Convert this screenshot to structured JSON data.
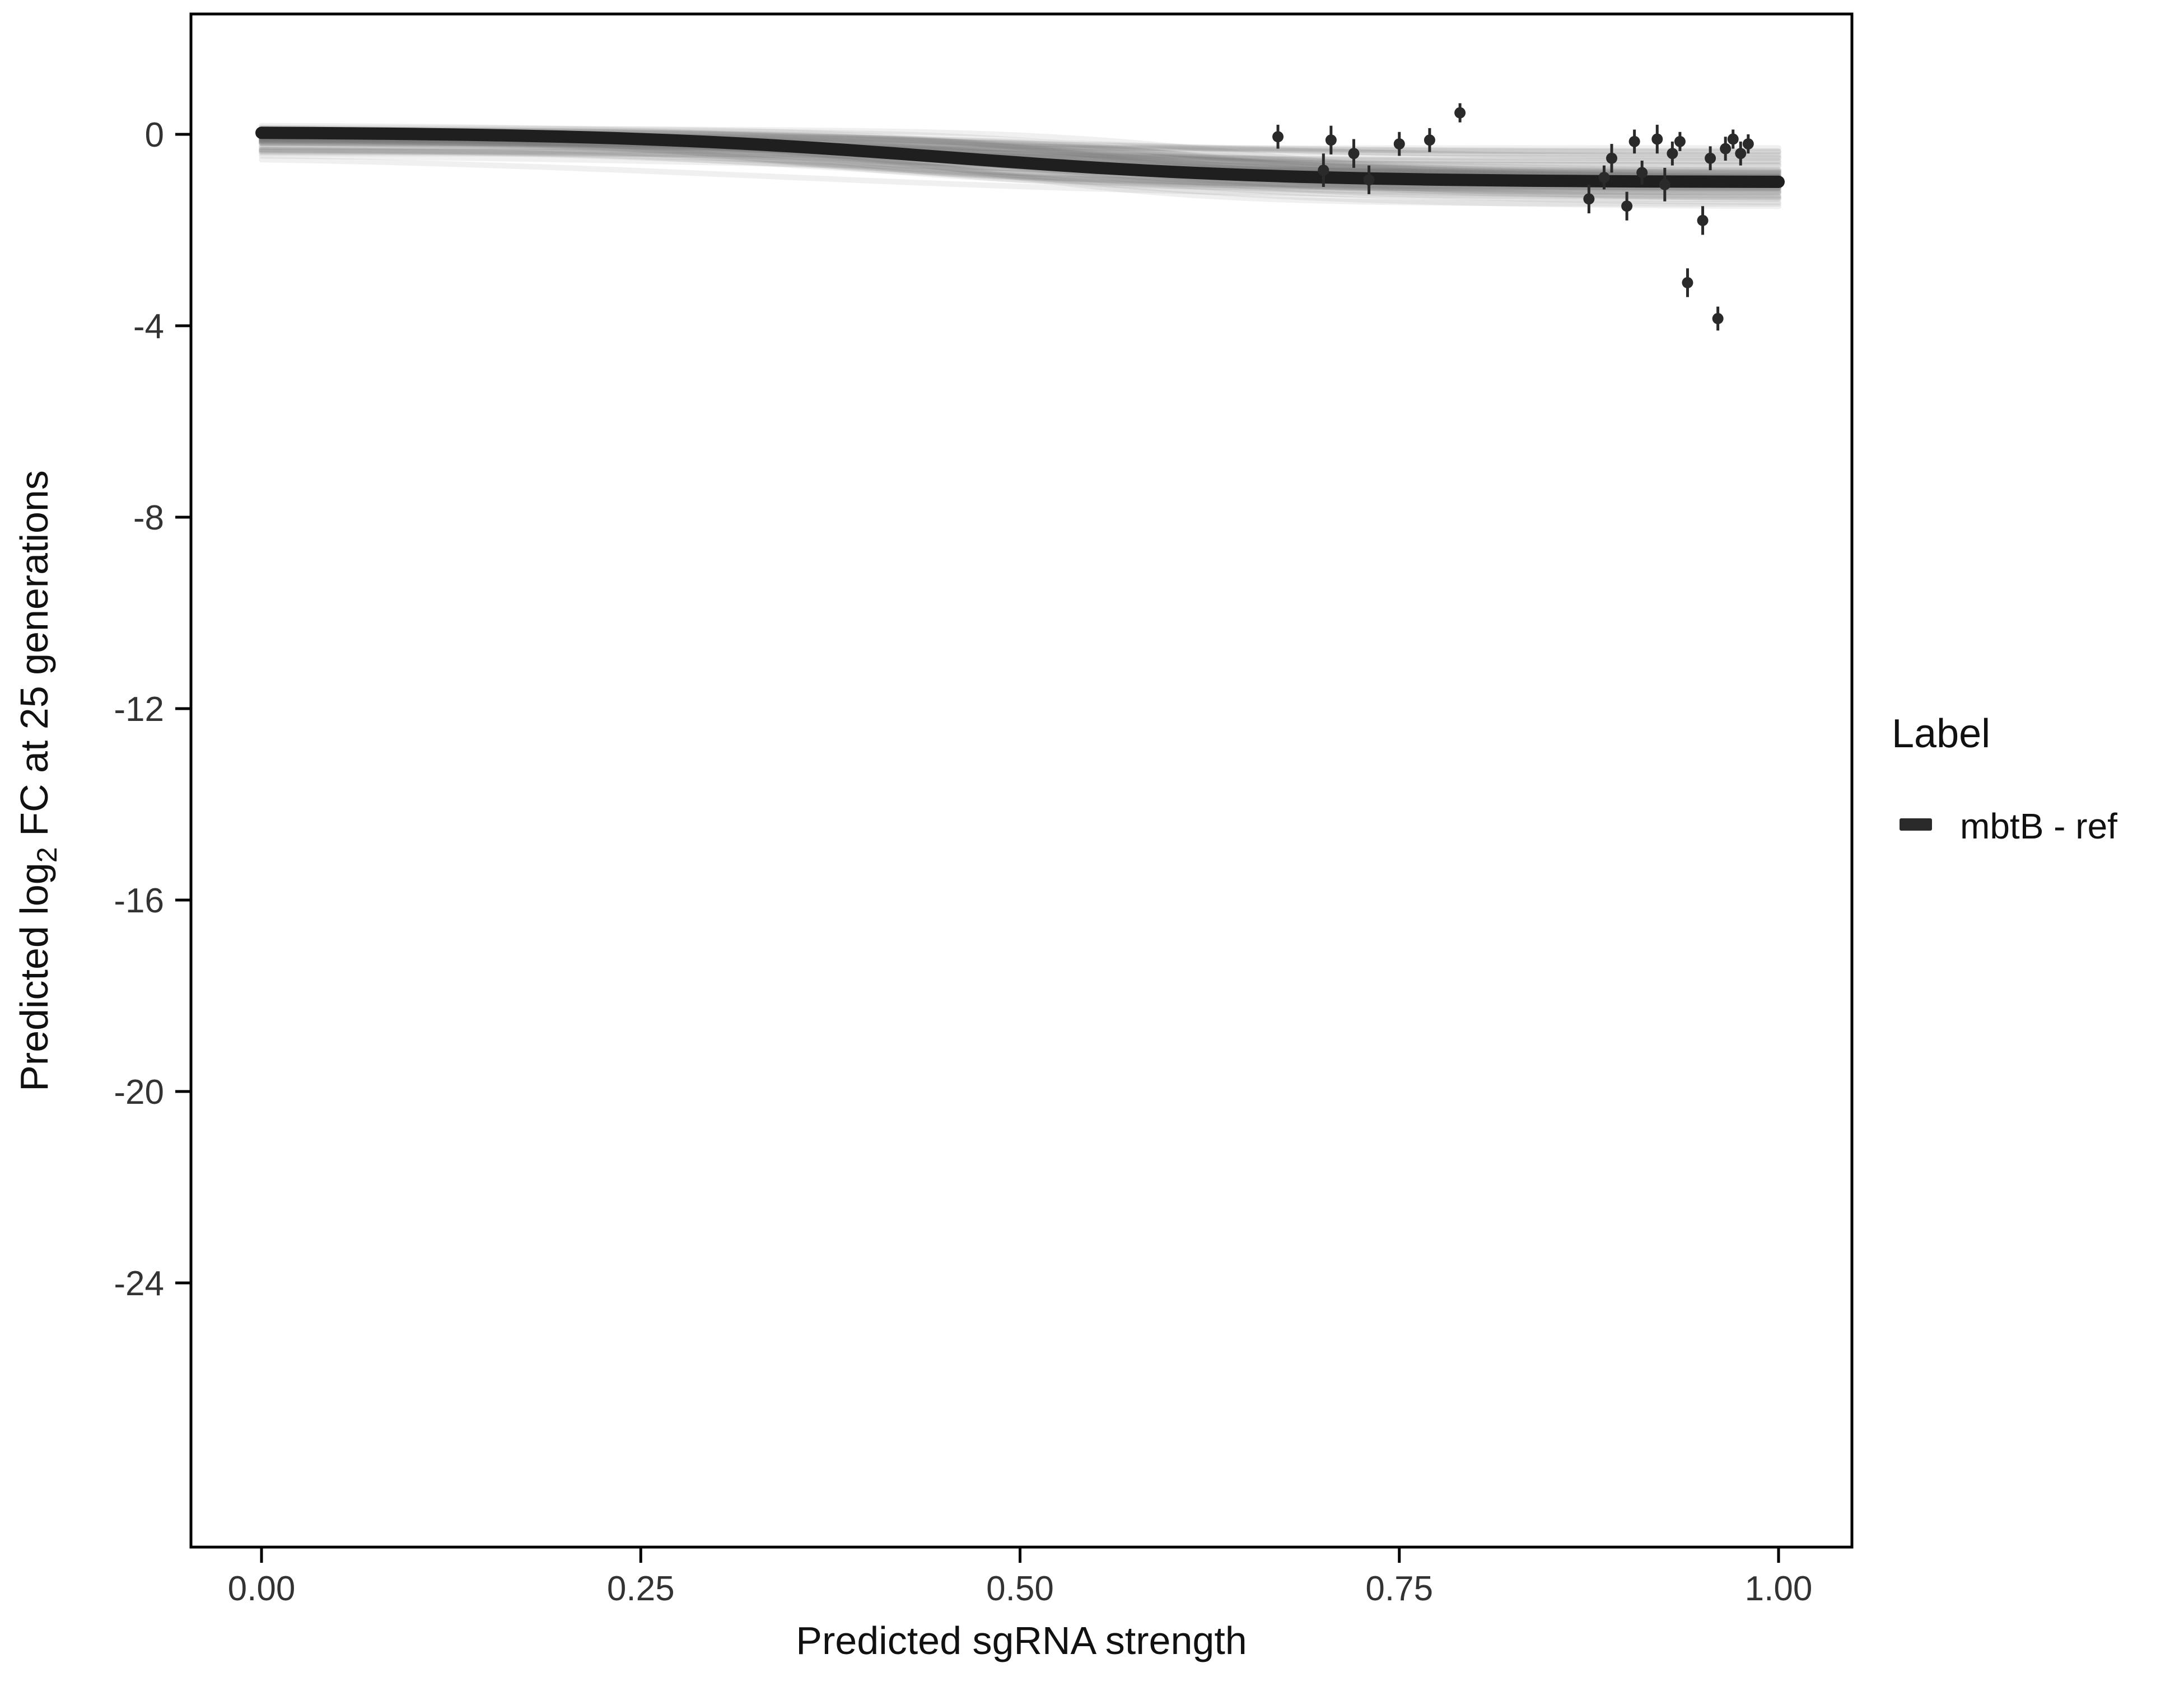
{
  "chart_data": {
    "type": "line",
    "title": "",
    "xlabel": "Predicted sgRNA strength",
    "ylabel_parts": [
      "Predicted  log",
      "2",
      " FC at 25 generations"
    ],
    "x_ticks": [
      "0.00",
      "0.25",
      "0.50",
      "0.75",
      "1.00"
    ],
    "x_tick_values": [
      0,
      0.25,
      0.5,
      0.75,
      1.0
    ],
    "y_ticks": [
      "0",
      "-4",
      "-8",
      "-12",
      "-16",
      "-20",
      "-24"
    ],
    "y_tick_values": [
      0,
      -4,
      -8,
      -12,
      -16,
      -20,
      -24
    ],
    "xlim": [
      0,
      1
    ],
    "ylim_display": [
      -29.5,
      2.5
    ],
    "grid": false,
    "legend_position": "right",
    "fit_curve": {
      "name": "mbtB - ref",
      "y_start": 0.05,
      "y_end": -1.0,
      "midpoint": 0.45,
      "steepness": 9,
      "color": "#1f1f1f",
      "width": 22
    },
    "ensemble": {
      "count": 80,
      "seed": 42,
      "y_start_range": [
        -0.45,
        0.2
      ],
      "y_end_range": [
        -1.55,
        -0.25
      ],
      "midpoint_range": [
        0.3,
        0.65
      ],
      "steepness_range": [
        5,
        14
      ],
      "color": "#7a7a7a",
      "opacity": 0.11,
      "width": 10
    },
    "points": [
      [
        0.67,
        -0.05,
        0.25
      ],
      [
        0.7,
        -0.75,
        0.35
      ],
      [
        0.705,
        -0.12,
        0.3
      ],
      [
        0.72,
        -0.4,
        0.3
      ],
      [
        0.73,
        -0.95,
        0.3
      ],
      [
        0.75,
        -0.2,
        0.25
      ],
      [
        0.77,
        -0.12,
        0.25
      ],
      [
        0.79,
        0.45,
        0.2
      ],
      [
        0.875,
        -1.35,
        0.3
      ],
      [
        0.885,
        -0.9,
        0.25
      ],
      [
        0.89,
        -0.5,
        0.3
      ],
      [
        0.9,
        -1.5,
        0.3
      ],
      [
        0.905,
        -0.15,
        0.25
      ],
      [
        0.91,
        -0.8,
        0.25
      ],
      [
        0.92,
        -0.1,
        0.3
      ],
      [
        0.925,
        -1.05,
        0.35
      ],
      [
        0.93,
        -0.4,
        0.25
      ],
      [
        0.935,
        -0.15,
        0.2
      ],
      [
        0.94,
        -3.1,
        0.3
      ],
      [
        0.95,
        -1.8,
        0.3
      ],
      [
        0.955,
        -0.5,
        0.25
      ],
      [
        0.96,
        -3.85,
        0.25
      ],
      [
        0.965,
        -0.3,
        0.25
      ],
      [
        0.97,
        -0.1,
        0.2
      ],
      [
        0.975,
        -0.4,
        0.25
      ],
      [
        0.98,
        -0.2,
        0.2
      ]
    ],
    "point_color": "#2a2a2a",
    "axis_color": "#000000"
  },
  "legend": {
    "title": "Label",
    "entries": [
      {
        "label": "mbtB - ref",
        "color": "#2a2a2a"
      }
    ]
  }
}
